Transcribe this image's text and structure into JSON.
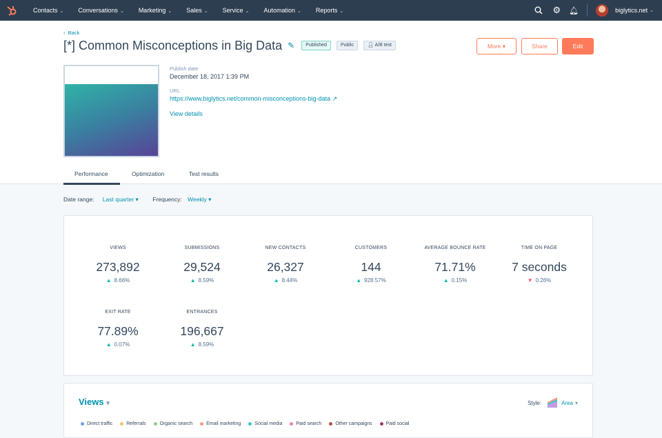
{
  "nav": {
    "items": [
      "Contacts",
      "Conversations",
      "Marketing",
      "Sales",
      "Service",
      "Automation",
      "Reports"
    ],
    "account": "biglytics.net",
    "icons": [
      "search-icon",
      "gear-icon",
      "bell-icon"
    ]
  },
  "page": {
    "back": "Back",
    "title": "[*] Common Misconceptions in Big Data",
    "badges": {
      "published": "Published",
      "public": "Public",
      "ab": "A/B test"
    },
    "buttons": {
      "more": "More",
      "share": "Share",
      "edit": "Edit"
    },
    "publish_label": "Publish date",
    "publish_date": "December 18, 2017 1:39 PM",
    "url_label": "URL",
    "url": "https://www.biglytics.net/common-misconceptions-big-data",
    "view_details": "View details"
  },
  "tabs": [
    "Performance",
    "Optimization",
    "Test results"
  ],
  "filters": {
    "date_label": "Date range:",
    "date_value": "Last quarter",
    "freq_label": "Frequency:",
    "freq_value": "Weekly"
  },
  "stats": [
    {
      "label": "Views",
      "value": "273,892",
      "change": "8.66%",
      "dir": "up"
    },
    {
      "label": "Submissions",
      "value": "29,524",
      "change": "8.59%",
      "dir": "up"
    },
    {
      "label": "New contacts",
      "value": "26,327",
      "change": "8.44%",
      "dir": "up"
    },
    {
      "label": "Customers",
      "value": "144",
      "change": "928.57%",
      "dir": "up"
    },
    {
      "label": "Average bounce rate",
      "value": "71.71%",
      "change": "0.15%",
      "dir": "up"
    },
    {
      "label": "Time on page",
      "value": "7 seconds",
      "change": "0.26%",
      "dir": "down"
    },
    {
      "label": "Exit rate",
      "value": "77.89%",
      "change": "0.07%",
      "dir": "up"
    },
    {
      "label": "Entrances",
      "value": "196,667",
      "change": "8.59%",
      "dir": "up"
    }
  ],
  "chart": {
    "metric": "Views",
    "style_label": "Style:",
    "style_value": "Area",
    "legend": [
      {
        "name": "Direct traffic",
        "color": "#6a9fe0"
      },
      {
        "name": "Referrals",
        "color": "#f5c26b"
      },
      {
        "name": "Organic search",
        "color": "#8fcf8a"
      },
      {
        "name": "Email marketing",
        "color": "#f59b7c"
      },
      {
        "name": "Social media",
        "color": "#3fc6d0"
      },
      {
        "name": "Paid search",
        "color": "#ef7fa6"
      },
      {
        "name": "Other campaigns",
        "color": "#b5523e"
      },
      {
        "name": "Paid social",
        "color": "#a33a6a"
      }
    ]
  }
}
